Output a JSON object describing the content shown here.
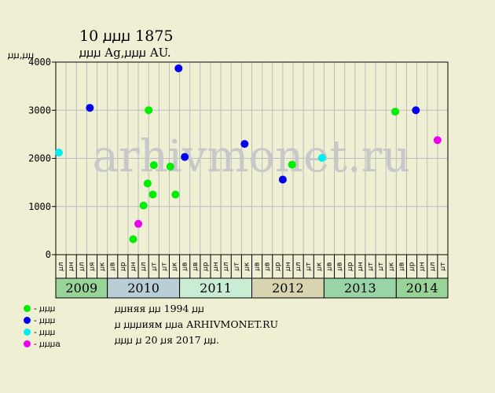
{
  "title": "10 ꙡꙡꙡ 1875",
  "subtitle": "ꙡꙡꙡ Ag,ꙡꙡꙡ AU.",
  "ylabel_text": "ꙡꙡ,ꙡꙡ",
  "watermark": "arhivmonet.ru",
  "legend": [
    {
      "label": "- ꙡꙡꙡ",
      "color": "#00ee00"
    },
    {
      "label": "- ꙡꙡꙡ",
      "color": "#0000ee"
    },
    {
      "label": "- ꙡꙡꙡ",
      "color": "#00eeee"
    },
    {
      "label": "- ꙡꙡꙡa",
      "color": "#ee00ee"
    }
  ],
  "notes": [
    "ꙡꙡняя ꙡꙡ 1994 ꙡꙡ",
    "ꙡ ꙡꙡꙡиям ꙡꙡa ARHIVMONET.RU",
    "ꙡꙡꙡ ꙡ 20 ꙡя 2017 ꙡꙡ."
  ],
  "colors": {
    "background": "#efefd4",
    "grid": "#bdbdbd",
    "axis": "#000000",
    "watermark": "#c8c8c8"
  },
  "chart_data": {
    "type": "scatter",
    "ylim": [
      0,
      4000
    ],
    "yticks": [
      0,
      1000,
      2000,
      3000,
      4000
    ],
    "grid": true,
    "legend_position": "bottom-left",
    "x_months": [
      "ꙡл",
      "ꙡн",
      "ꙡл",
      "ꙡя",
      "ꙡк",
      "ꙡв",
      "ꙡр",
      "ꙡн",
      "ꙡл",
      "ꙡт",
      "ꙡт",
      "ꙡк",
      "ꙡв",
      "ꙡв",
      "ꙡр",
      "ꙡн",
      "ꙡл",
      "ꙡт",
      "ꙡк",
      "ꙡв",
      "ꙡв",
      "ꙡр",
      "ꙡн",
      "ꙡл",
      "ꙡт",
      "ꙡк",
      "ꙡв",
      "ꙡв",
      "ꙡр",
      "ꙡн",
      "ꙡт",
      "ꙡт",
      "ꙡк",
      "ꙡв",
      "ꙡр",
      "ꙡн",
      "ꙡл",
      "ꙡт"
    ],
    "years": [
      {
        "label": "2009",
        "start": 0,
        "span": 5,
        "color": "#98d398"
      },
      {
        "label": "2010",
        "start": 5,
        "span": 7,
        "color": "#b8cfd8"
      },
      {
        "label": "2011",
        "start": 12,
        "span": 7,
        "color": "#c8ecd4"
      },
      {
        "label": "2012",
        "start": 19,
        "span": 7,
        "color": "#d8d4b0"
      },
      {
        "label": "2013",
        "start": 26,
        "span": 7,
        "color": "#98d4a8"
      },
      {
        "label": "2014",
        "start": 33,
        "span": 5,
        "color": "#98d398"
      }
    ],
    "series": [
      {
        "color": "#00ee00",
        "points": [
          [
            7.5,
            320
          ],
          [
            8.5,
            1020
          ],
          [
            8.9,
            1480
          ],
          [
            9.0,
            3000
          ],
          [
            9.4,
            1250
          ],
          [
            9.5,
            1860
          ],
          [
            11.1,
            1830
          ],
          [
            11.6,
            1250
          ],
          [
            22.9,
            1870
          ],
          [
            32.9,
            2970
          ]
        ]
      },
      {
        "color": "#0000ee",
        "points": [
          [
            3.3,
            3050
          ],
          [
            11.9,
            3870
          ],
          [
            12.5,
            2030
          ],
          [
            18.3,
            2300
          ],
          [
            22.0,
            1560
          ],
          [
            34.9,
            3000
          ]
        ]
      },
      {
        "color": "#00eeee",
        "points": [
          [
            0.3,
            2120
          ],
          [
            25.8,
            2010
          ]
        ]
      },
      {
        "color": "#ee00ee",
        "points": [
          [
            8.0,
            640
          ],
          [
            37.0,
            2380
          ]
        ]
      }
    ]
  }
}
